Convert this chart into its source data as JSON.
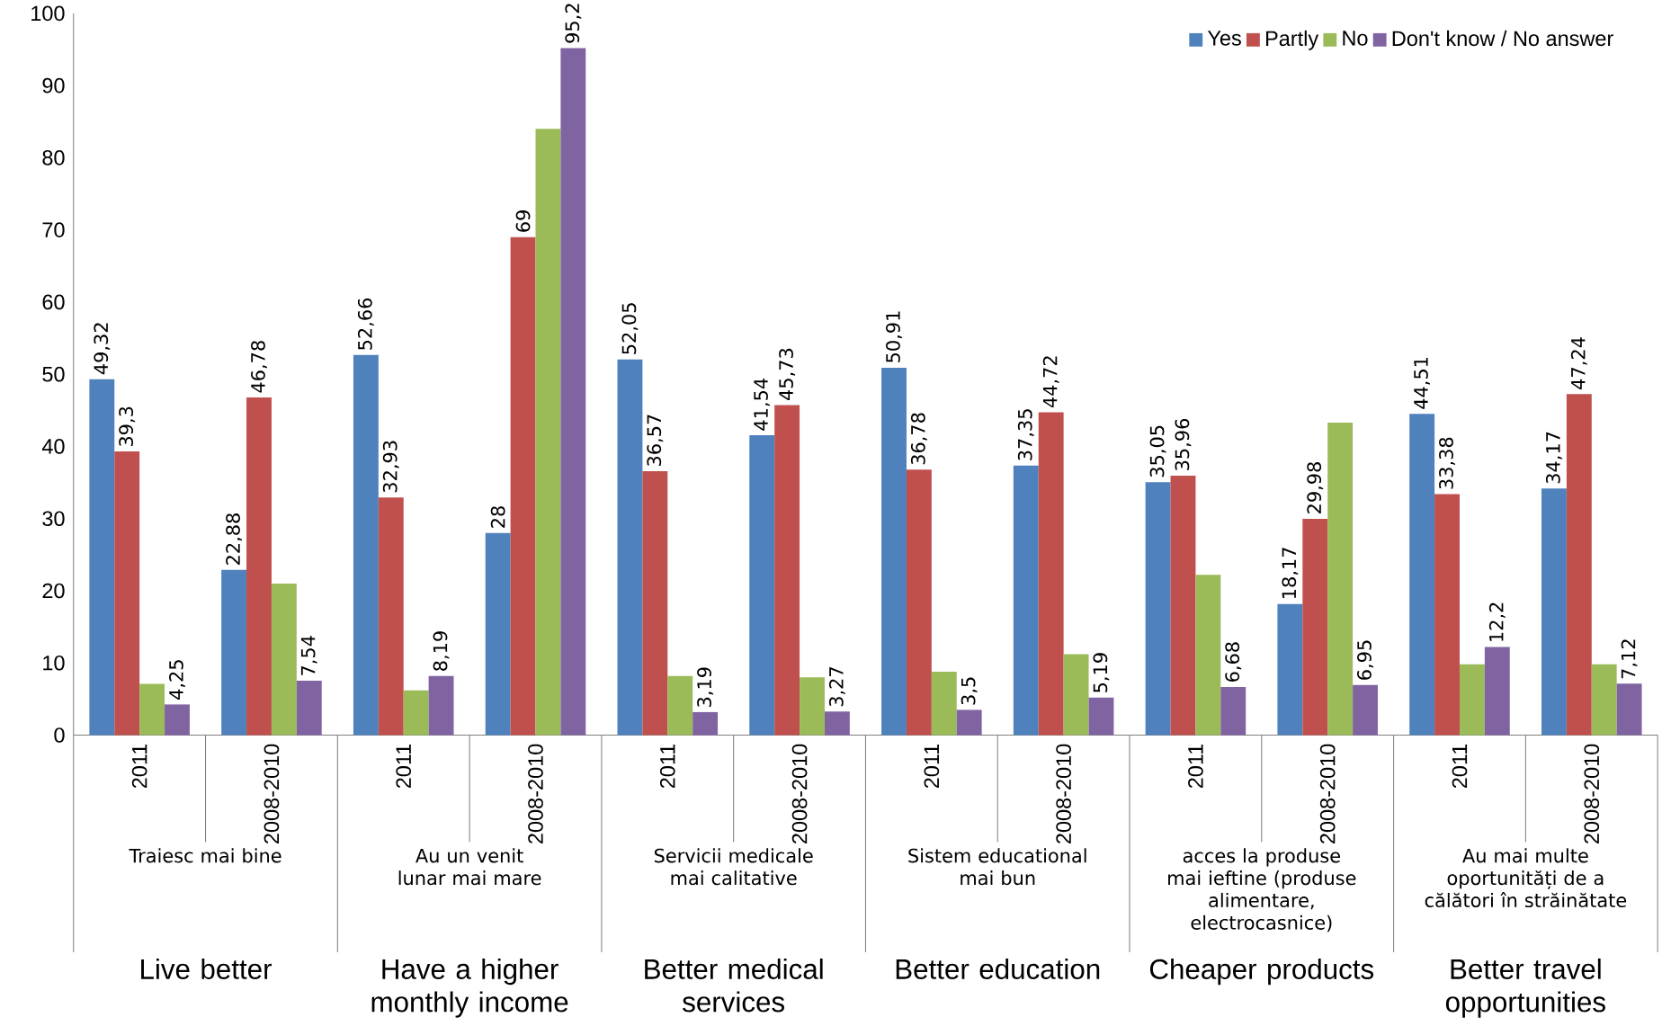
{
  "chart_data": {
    "type": "bar",
    "categories": [
      "2011",
      "2008-2010",
      "2011",
      "2008-2010",
      "2011",
      "2008-2010",
      "2011",
      "2008-2010",
      "2011",
      "2008-2010",
      "2011",
      "2008-2010"
    ],
    "series": [
      {
        "name": "Yes",
        "color": "#4f81bd",
        "values": [
          49.32,
          22.88,
          52.66,
          28,
          52.05,
          41.54,
          50.91,
          37.35,
          35.05,
          18.17,
          44.51,
          34.17
        ],
        "value_labels": [
          "49,32",
          "22,88",
          "52,66",
          "28",
          "52,05",
          "41,54",
          "50,91",
          "37,35",
          "35,05",
          "18,17",
          "44,51",
          "34,17"
        ]
      },
      {
        "name": "Partly",
        "color": "#c0504d",
        "values": [
          39.3,
          46.78,
          32.93,
          69,
          36.57,
          45.73,
          36.78,
          44.72,
          35.96,
          29.98,
          33.38,
          47.24
        ],
        "value_labels": [
          "39,3",
          "46,78",
          "32,93",
          "69",
          "36,57",
          "45,73",
          "36,78",
          "44,72",
          "35,96",
          "29,98",
          "33,38",
          "47,24"
        ]
      },
      {
        "name": "No",
        "color": "#9bbb59",
        "values": [
          7.1,
          21,
          6.2,
          84,
          8.2,
          8,
          8.8,
          11.2,
          22.2,
          43.3,
          9.8,
          9.8
        ]
      },
      {
        "name": "Don't know / No answer",
        "color": "#8064a2",
        "values": [
          4.25,
          7.54,
          8.19,
          95.2,
          3.19,
          3.27,
          3.5,
          5.19,
          6.68,
          6.95,
          12.2,
          7.12
        ],
        "value_labels": [
          "4,25",
          "7,54",
          "8,19",
          "95,2",
          "3,19",
          "3,27",
          "3,5",
          "5,19",
          "6,68",
          "6,95",
          "12,2",
          "7,12"
        ]
      }
    ],
    "ylim": [
      0,
      100
    ],
    "yticks": [
      0,
      10,
      20,
      30,
      40,
      50,
      60,
      70,
      80,
      90,
      100
    ],
    "grid": false,
    "legend": "top right",
    "annotations": [
      "Traiesc mai bine",
      "Live better",
      "Au un venit lunar mai mare",
      "Have a higher monthly income",
      "Servicii medicale mai calitative",
      "Better medical services",
      "Sistem educational mai bun",
      "Better education",
      "acces la produse mai ieftine (produse alimentare, electrocasnice)",
      "Cheaper products",
      "Au mai multe oportunități de a călători în străinătate",
      "Better travel opportunities"
    ]
  }
}
